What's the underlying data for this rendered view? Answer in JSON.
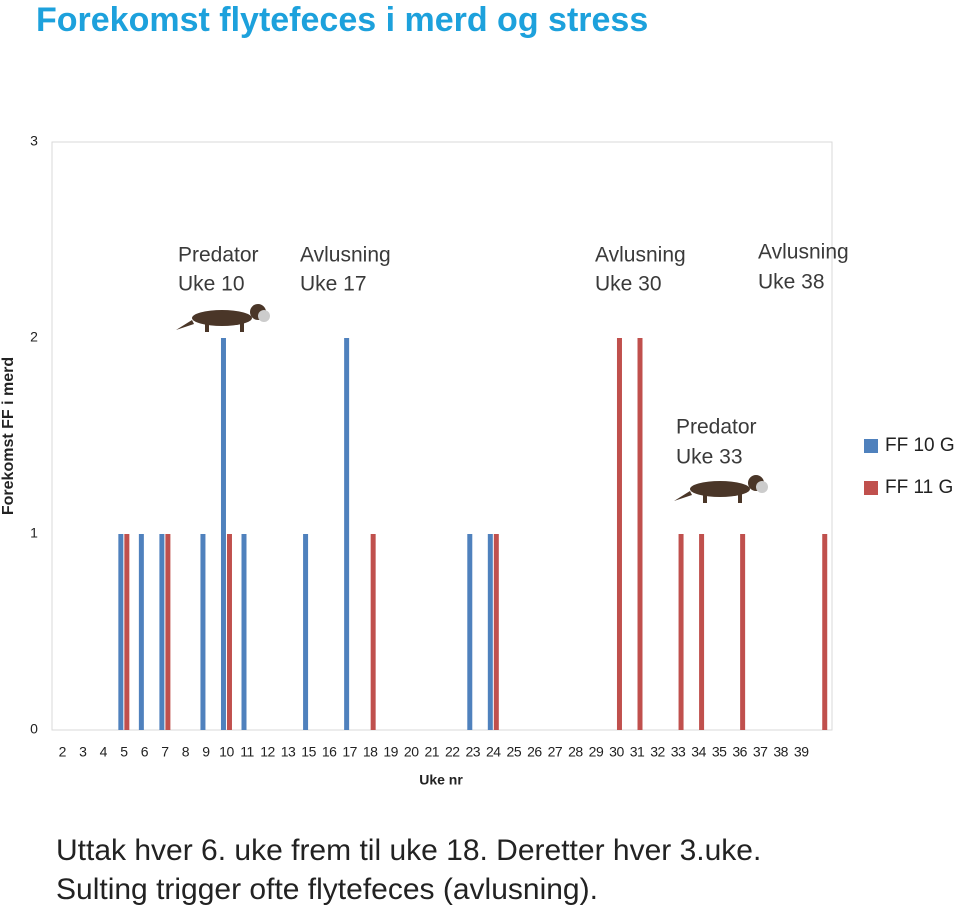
{
  "chart_data": {
    "type": "bar",
    "title": "Forekomst flytefeces i merd og stress",
    "y_label": "Forekomst FF i merd",
    "x_label": "Uke nr",
    "categories": [
      "2",
      "3",
      "4",
      "5",
      "6",
      "7",
      "8",
      "9",
      "10",
      "11",
      "12",
      "13",
      "15",
      "16",
      "17",
      "18",
      "19",
      "20",
      "21",
      "22",
      "23",
      "24",
      "25",
      "26",
      "27",
      "28",
      "29",
      "30",
      "31",
      "32",
      "33",
      "34",
      "35",
      "36",
      "37",
      "38",
      "39",
      null
    ],
    "series": [
      {
        "name": "FF 10 G",
        "color": "#4f81bd",
        "values": [
          0,
          0,
          0,
          1,
          1,
          1,
          0,
          1,
          2,
          1,
          0,
          0,
          1,
          0,
          2,
          0,
          0,
          0,
          0,
          0,
          1,
          1,
          0,
          0,
          0,
          0,
          0,
          0,
          0,
          0,
          0,
          0,
          0,
          0,
          0,
          0,
          0,
          0
        ]
      },
      {
        "name": "FF 11 G",
        "color": "#c0504d",
        "values": [
          0,
          0,
          0,
          1,
          0,
          1,
          0,
          0,
          1,
          0,
          0,
          0,
          0,
          0,
          0,
          1,
          0,
          0,
          0,
          0,
          0,
          1,
          0,
          0,
          0,
          0,
          0,
          2,
          2,
          0,
          1,
          1,
          0,
          1,
          0,
          0,
          0,
          1
        ]
      }
    ],
    "ylim": [
      0,
      3
    ],
    "yticks": [
      0,
      1,
      2,
      3
    ],
    "grid": false,
    "annotations": [
      [
        "Predator",
        "Uke 10"
      ],
      [
        "Avlusning",
        "Uke 17"
      ],
      [
        "Avlusning",
        "Uke 30"
      ],
      [
        "Avlusning",
        "Uke 38"
      ],
      [
        "Predator",
        "Uke 33"
      ]
    ],
    "footer": [
      "Uttak hver 6. uke frem til uke 18. Deretter hver 3.uke.",
      "Sulting trigger ofte flytefeces (avlusning)."
    ]
  }
}
